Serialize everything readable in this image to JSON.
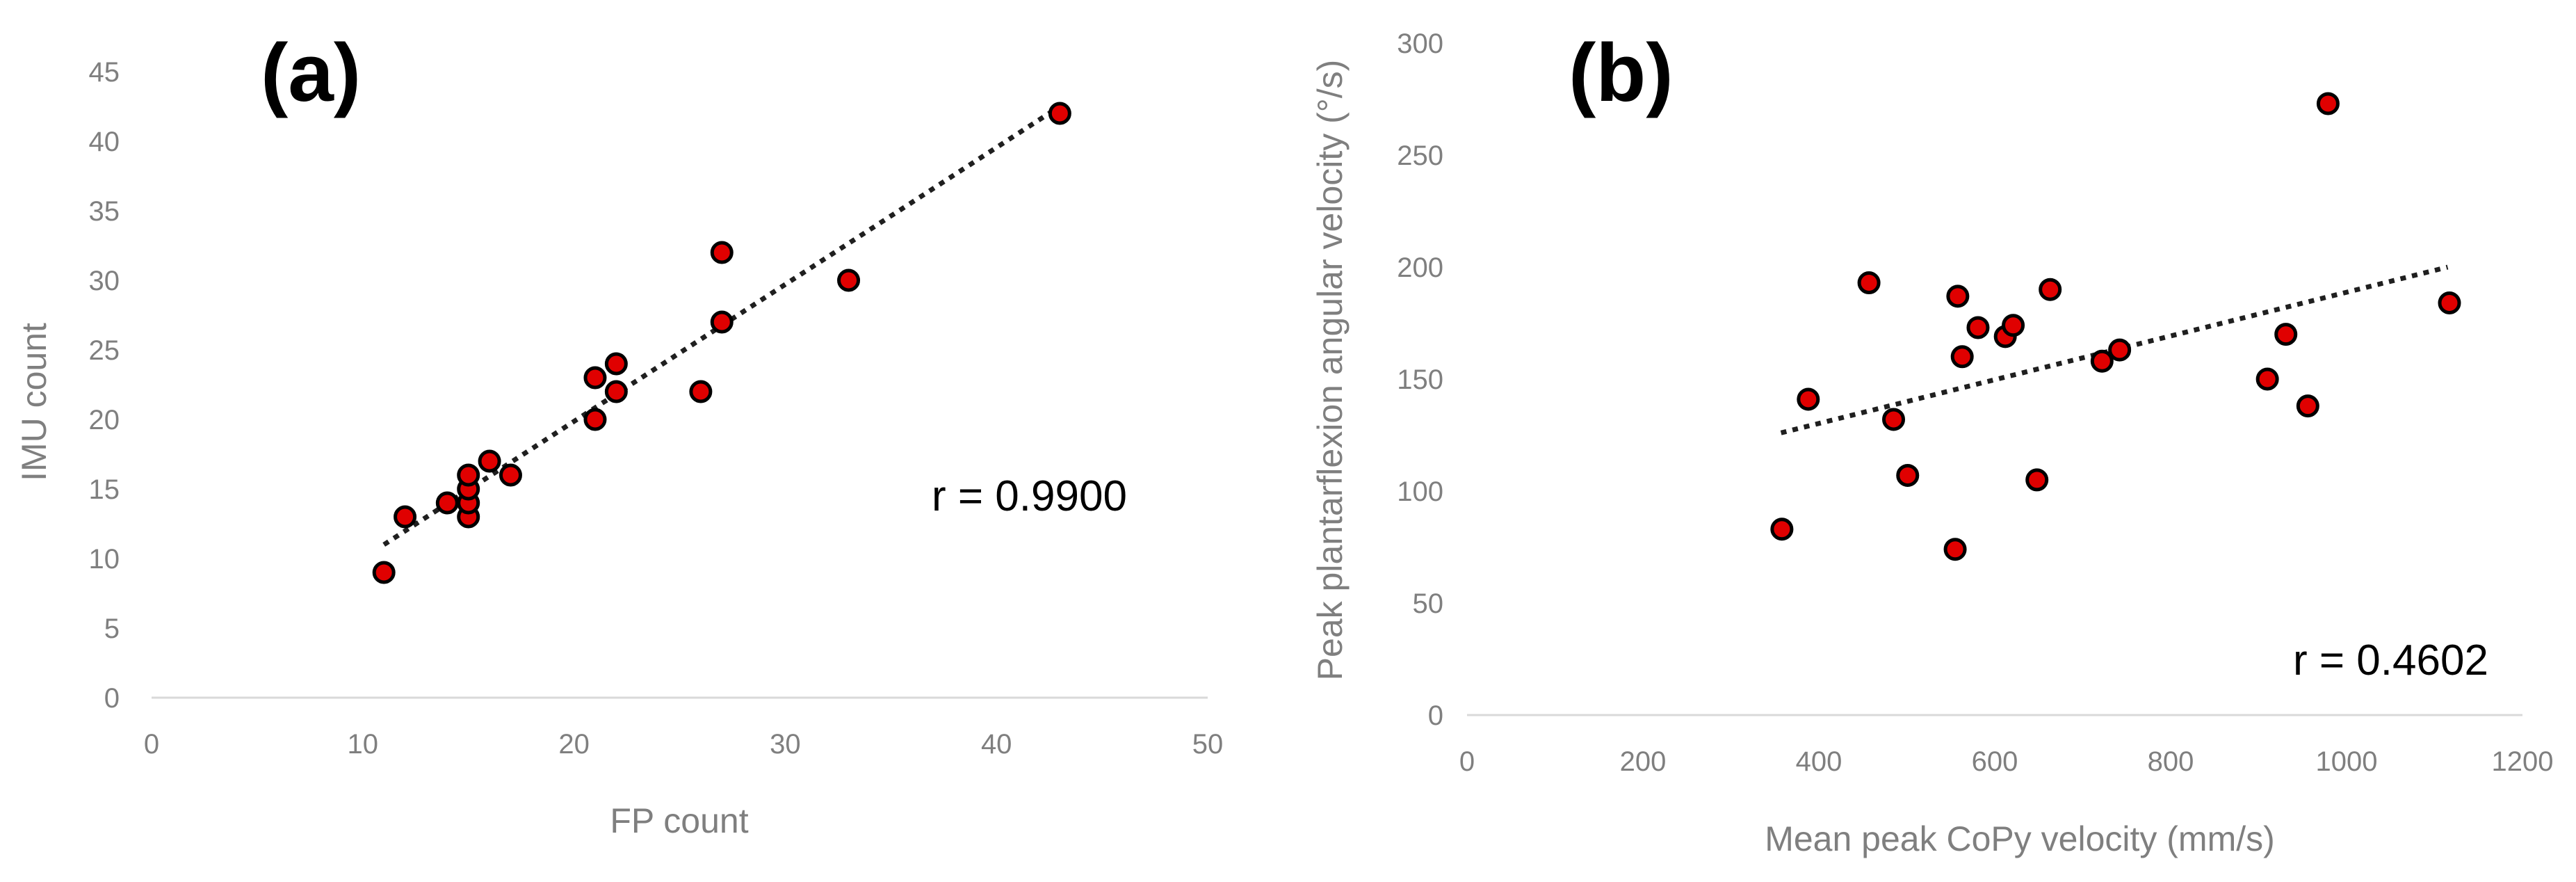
{
  "chart_data": [
    {
      "type": "scatter",
      "panel_label": "(a)",
      "xlabel": "FP count",
      "ylabel": "IMU count",
      "xlim": [
        0,
        50
      ],
      "ylim": [
        0,
        45
      ],
      "x_ticks": [
        "0",
        "10",
        "20",
        "30",
        "40",
        "50"
      ],
      "y_ticks": [
        "0",
        "5",
        "10",
        "15",
        "20",
        "25",
        "30",
        "35",
        "40",
        "45"
      ],
      "annotation": "r = 0.9900",
      "grid": false,
      "trendline": {
        "style": "dotted",
        "from": [
          11,
          11
        ],
        "to": [
          43,
          42.5
        ]
      },
      "points": [
        {
          "x": 11,
          "y": 9
        },
        {
          "x": 12,
          "y": 13
        },
        {
          "x": 14,
          "y": 14
        },
        {
          "x": 15,
          "y": 13
        },
        {
          "x": 15,
          "y": 14
        },
        {
          "x": 15,
          "y": 15
        },
        {
          "x": 15,
          "y": 16
        },
        {
          "x": 16,
          "y": 17
        },
        {
          "x": 17,
          "y": 16
        },
        {
          "x": 21,
          "y": 20
        },
        {
          "x": 21,
          "y": 23
        },
        {
          "x": 22,
          "y": 22
        },
        {
          "x": 22,
          "y": 24
        },
        {
          "x": 26,
          "y": 22
        },
        {
          "x": 27,
          "y": 27
        },
        {
          "x": 27,
          "y": 32
        },
        {
          "x": 33,
          "y": 30
        },
        {
          "x": 43,
          "y": 42
        }
      ],
      "colors": {
        "marker_fill": "#e00000",
        "marker_edge": "#000000",
        "axis_text": "#7f7f7f"
      }
    },
    {
      "type": "scatter",
      "panel_label": "(b)",
      "xlabel": "Mean peak CoPy velocity (mm/s)",
      "ylabel": "Peak plantarflexion  angular velocity (°/s)",
      "xlim": [
        0,
        1200
      ],
      "ylim": [
        0,
        300
      ],
      "x_ticks": [
        "0",
        "200",
        "400",
        "600",
        "800",
        "1000",
        "1200"
      ],
      "y_ticks": [
        "0",
        "50",
        "100",
        "150",
        "200",
        "250",
        "300"
      ],
      "annotation": "r = 0.4602",
      "grid": false,
      "trendline": {
        "style": "dotted",
        "from": [
          357,
          126
        ],
        "to": [
          1115,
          200
        ]
      },
      "points": [
        {
          "x": 358,
          "y": 83
        },
        {
          "x": 388,
          "y": 141
        },
        {
          "x": 457,
          "y": 193
        },
        {
          "x": 485,
          "y": 132
        },
        {
          "x": 501,
          "y": 107
        },
        {
          "x": 555,
          "y": 74
        },
        {
          "x": 558,
          "y": 187
        },
        {
          "x": 563,
          "y": 160
        },
        {
          "x": 581,
          "y": 173
        },
        {
          "x": 612,
          "y": 169
        },
        {
          "x": 621,
          "y": 174
        },
        {
          "x": 648,
          "y": 105
        },
        {
          "x": 663,
          "y": 190
        },
        {
          "x": 722,
          "y": 158
        },
        {
          "x": 742,
          "y": 163
        },
        {
          "x": 910,
          "y": 150
        },
        {
          "x": 931,
          "y": 170
        },
        {
          "x": 956,
          "y": 138
        },
        {
          "x": 979,
          "y": 273
        },
        {
          "x": 1117,
          "y": 184
        }
      ],
      "colors": {
        "marker_fill": "#e00000",
        "marker_edge": "#000000",
        "axis_text": "#7f7f7f"
      }
    }
  ]
}
